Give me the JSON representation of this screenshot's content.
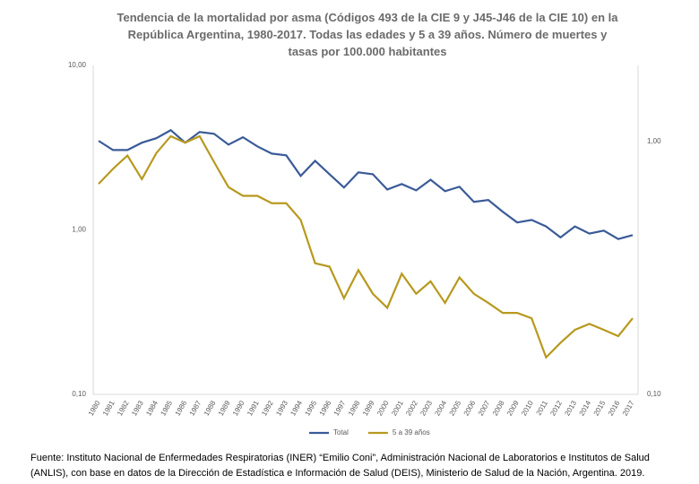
{
  "chart_data": {
    "type": "line",
    "title": "Tendencia de la mortalidad por asma (Códigos 493 de la CIE 9 y J45-J46 de la CIE 10) en la República Argentina, 1980-2017. Todas las edades y 5 a 39 años.  Número de muertes y tasas por 100.000 habitantes",
    "source": "Fuente: Instituto Nacional de Enfermedades Respiratorias (INER) “Emilio Coni”, Administración Nacional de Laboratorios e Institutos de Salud (ANLIS), con base en datos de la Dirección de Estadística e Información de Salud (DEIS), Ministerio de Salud de la Nación, Argentina. 2019.",
    "categories": [
      "1980",
      "1981",
      "1982",
      "1983",
      "1984",
      "1985",
      "1986",
      "1987",
      "1988",
      "1989",
      "1990",
      "1991",
      "1992",
      "1993",
      "1994",
      "1995",
      "1996",
      "1997",
      "1998",
      "1999",
      "2000",
      "2001",
      "2002",
      "2003",
      "2004",
      "2005",
      "2006",
      "2007",
      "2008",
      "2009",
      "2010",
      "2011",
      "2012",
      "2013",
      "2014",
      "2015",
      "2016",
      "2017"
    ],
    "series": [
      {
        "name": "Total",
        "color": "#3b5b98",
        "axis": "y",
        "values": [
          3.48,
          3.06,
          3.06,
          3.39,
          3.61,
          4.04,
          3.39,
          3.94,
          3.84,
          3.3,
          3.66,
          3.22,
          2.91,
          2.84,
          2.13,
          2.63,
          2.18,
          1.81,
          2.24,
          2.18,
          1.76,
          1.9,
          1.74,
          2.02,
          1.72,
          1.83,
          1.48,
          1.52,
          1.29,
          1.11,
          1.15,
          1.05,
          0.9,
          1.05,
          0.95,
          0.99,
          0.88,
          0.93
        ]
      },
      {
        "name": "5 a 39 años",
        "color": "#b8991e",
        "axis": "y2",
        "values": [
          0.68,
          0.78,
          0.88,
          0.71,
          0.9,
          1.05,
          0.99,
          1.05,
          0.83,
          0.66,
          0.61,
          0.61,
          0.57,
          0.57,
          0.49,
          0.33,
          0.32,
          0.24,
          0.31,
          0.25,
          0.22,
          0.3,
          0.25,
          0.28,
          0.23,
          0.29,
          0.25,
          0.23,
          0.21,
          0.21,
          0.2,
          0.14,
          0.16,
          0.18,
          0.19,
          0.18,
          0.17,
          0.2
        ]
      }
    ],
    "log_scale": true,
    "ylim": [
      0.1,
      10
    ],
    "yticks": [
      {
        "value": 0.1,
        "label": "0,10"
      },
      {
        "value": 1,
        "label": "1,00"
      },
      {
        "value": 10,
        "label": "10,00"
      }
    ],
    "y2lim": [
      0.1,
      2
    ],
    "y2ticks": [
      {
        "value": 0.1,
        "label": "0,10"
      },
      {
        "value": 1,
        "label": "1,00"
      }
    ],
    "grid": false,
    "legend": "bottom"
  }
}
